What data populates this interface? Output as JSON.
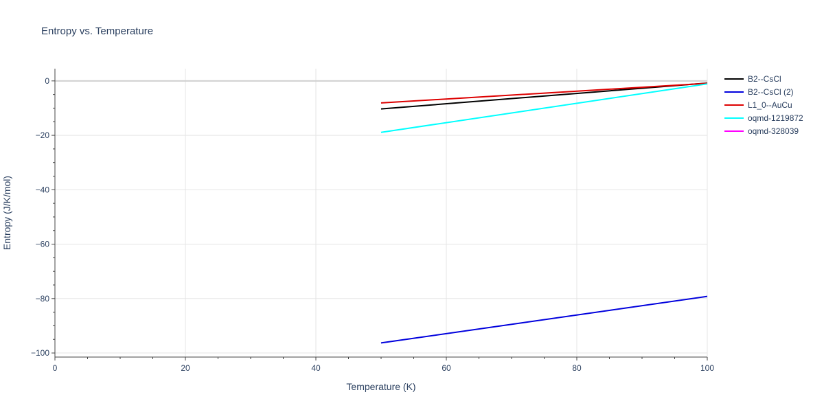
{
  "chart_data": {
    "type": "line",
    "title": "Entropy vs. Temperature",
    "xlabel": "Temperature (K)",
    "ylabel": "Entropy (J/K/mol)",
    "xlim": [
      0,
      100
    ],
    "ylim": [
      -101.5,
      4.5
    ],
    "x_ticks": [
      0,
      20,
      40,
      60,
      80,
      100
    ],
    "y_ticks": [
      0,
      -20,
      -40,
      -60,
      -80,
      -100
    ],
    "x_tick_labels": [
      "0",
      "20",
      "40",
      "60",
      "80",
      "100"
    ],
    "y_tick_labels": [
      "0",
      "−20",
      "−40",
      "−60",
      "−80",
      "−100"
    ],
    "grid": true,
    "legend_position": "right",
    "series": [
      {
        "name": "B2--CsCl",
        "color": "#000000",
        "x": [
          50,
          100
        ],
        "y": [
          -10.3,
          -0.8
        ]
      },
      {
        "name": "B2--CsCl (2)",
        "color": "#0000dd",
        "x": [
          50,
          100
        ],
        "y": [
          -96.3,
          -79.2
        ]
      },
      {
        "name": "L1_0--AuCu",
        "color": "#dd0000",
        "x": [
          50,
          100
        ],
        "y": [
          -8.1,
          -0.9
        ]
      },
      {
        "name": "oqmd-1219872",
        "color": "#00ffff",
        "x": [
          50,
          100
        ],
        "y": [
          -18.9,
          -1.1
        ]
      },
      {
        "name": "oqmd-328039",
        "color": "#ff00ff",
        "x": [],
        "y": []
      }
    ]
  }
}
